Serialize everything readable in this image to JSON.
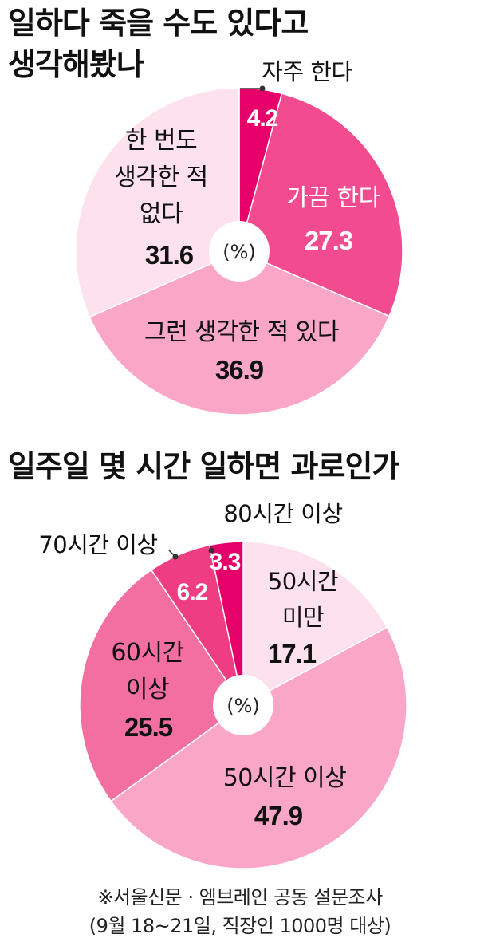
{
  "chart_data": [
    {
      "type": "pie",
      "title_lines": [
        "일하다 죽을 수도 있다고",
        "생각해봤나"
      ],
      "center_label": "(%)",
      "categories": [
        "자주 한다",
        "가끔 한다",
        "그런 생각한 적 있다",
        "한 번도 생각한 적 없다"
      ],
      "label_lines": [
        [
          "자주 한다"
        ],
        [
          "가끔 한다"
        ],
        [
          "그런 생각한 적 있다"
        ],
        [
          "한 번도",
          "생각한 적",
          "없다"
        ]
      ],
      "values": [
        4.2,
        27.3,
        36.9,
        31.6
      ],
      "value_labels": [
        "4.2",
        "27.3",
        "36.9",
        "31.6"
      ],
      "colors": [
        "#e8006a",
        "#f24b8f",
        "#f9a6c7",
        "#fde2ee"
      ]
    },
    {
      "type": "pie",
      "title": "일주일 몇 시간 일하면 과로인가",
      "center_label": "(%)",
      "categories": [
        "50시간 미만",
        "50시간 이상",
        "60시간 이상",
        "70시간 이상",
        "80시간 이상"
      ],
      "label_lines": [
        [
          "50시간",
          "미만"
        ],
        [
          "50시간 이상"
        ],
        [
          "60시간",
          "이상"
        ],
        [
          "70시간 이상"
        ],
        [
          "80시간 이상"
        ]
      ],
      "values": [
        17.1,
        47.9,
        25.5,
        6.2,
        3.3
      ],
      "value_labels": [
        "17.1",
        "47.9",
        "25.5",
        "6.2",
        "3.3"
      ],
      "colors": [
        "#fde2ee",
        "#f9a6c7",
        "#f36fa2",
        "#ee3d82",
        "#e6006a"
      ]
    }
  ],
  "source": {
    "line1": "※서울신문 · 엠브레인 공동 설문조사",
    "line2": "(9월 18~21일, 직장인 1000명 대상)"
  }
}
